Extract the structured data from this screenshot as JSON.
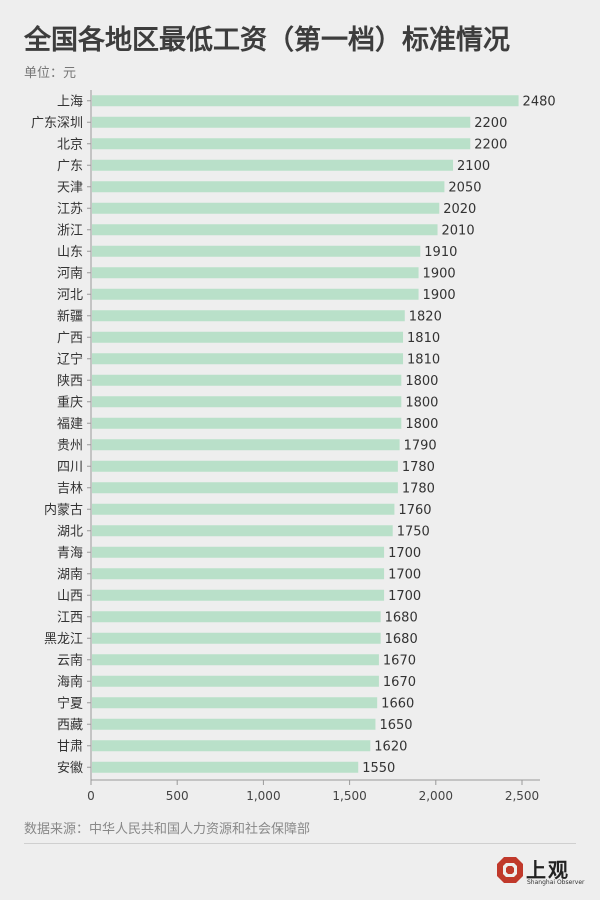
{
  "title": "全国各地区最低工资（第一档）标准情况",
  "unit_label": "单位：元",
  "source_label": "数据来源：中华人民共和国人力资源和社会保障部",
  "brand": {
    "name": "上观",
    "sub": "Shanghai Observer",
    "color": "#c0392b"
  },
  "colors": {
    "bar": "#b9e0c9",
    "axis": "#999999",
    "text": "#333333",
    "tick": "#444444"
  },
  "chart_data": {
    "type": "bar",
    "orientation": "horizontal",
    "title": "全国各地区最低工资（第一档）标准情况",
    "categories": [
      "上海",
      "广东深圳",
      "北京",
      "广东",
      "天津",
      "江苏",
      "浙江",
      "山东",
      "河南",
      "河北",
      "新疆",
      "广西",
      "辽宁",
      "陕西",
      "重庆",
      "福建",
      "贵州",
      "四川",
      "吉林",
      "内蒙古",
      "湖北",
      "青海",
      "湖南",
      "山西",
      "江西",
      "黑龙江",
      "云南",
      "海南",
      "宁夏",
      "西藏",
      "甘肃",
      "安徽"
    ],
    "values": [
      2480,
      2200,
      2200,
      2100,
      2050,
      2020,
      2010,
      1910,
      1900,
      1900,
      1820,
      1810,
      1810,
      1800,
      1800,
      1800,
      1790,
      1780,
      1780,
      1760,
      1750,
      1700,
      1700,
      1700,
      1680,
      1680,
      1670,
      1670,
      1660,
      1650,
      1620,
      1550
    ],
    "xlim": [
      0,
      2500
    ],
    "xticks": [
      0,
      500,
      1000,
      1500,
      2000,
      2500
    ],
    "xtick_labels": [
      "0",
      "500",
      "1,000",
      "1,500",
      "2,000",
      "2,500"
    ],
    "grid": false,
    "data_labels": true
  }
}
